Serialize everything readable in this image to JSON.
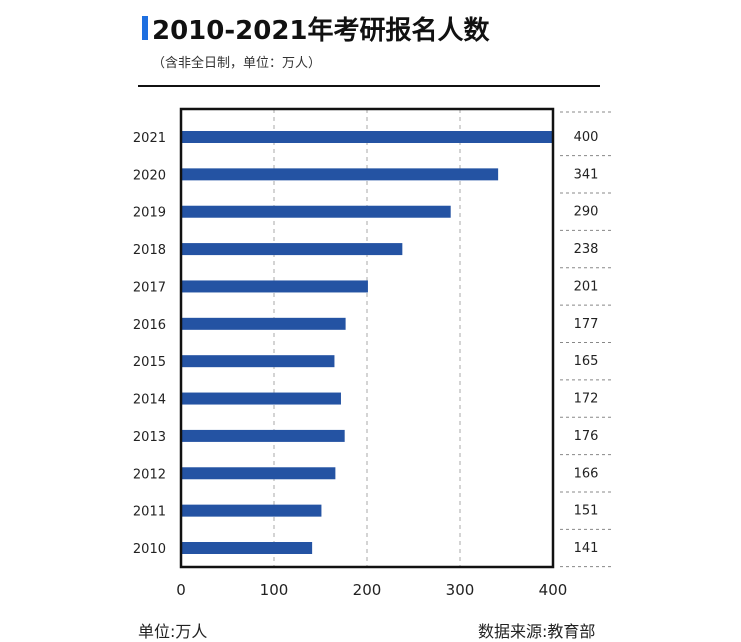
{
  "title": "2010-2021年考研报名人数",
  "subtitle": "（含非全日制，单位：万人）",
  "footer": {
    "unit": "单位:万人",
    "source": "数据来源:教育部"
  },
  "colors": {
    "bar": "#2453a3",
    "accent": "#1e6fe0"
  },
  "chart_data": {
    "type": "bar",
    "orientation": "horizontal",
    "categories": [
      "2021",
      "2020",
      "2019",
      "2018",
      "2017",
      "2016",
      "2015",
      "2014",
      "2013",
      "2012",
      "2011",
      "2010"
    ],
    "values": [
      400,
      341,
      290,
      238,
      201,
      177,
      165,
      172,
      176,
      166,
      151,
      141
    ],
    "xlim": [
      0,
      400
    ],
    "xticks": [
      "0",
      "100",
      "200",
      "300",
      "400"
    ],
    "grid": "vertical dashed"
  }
}
